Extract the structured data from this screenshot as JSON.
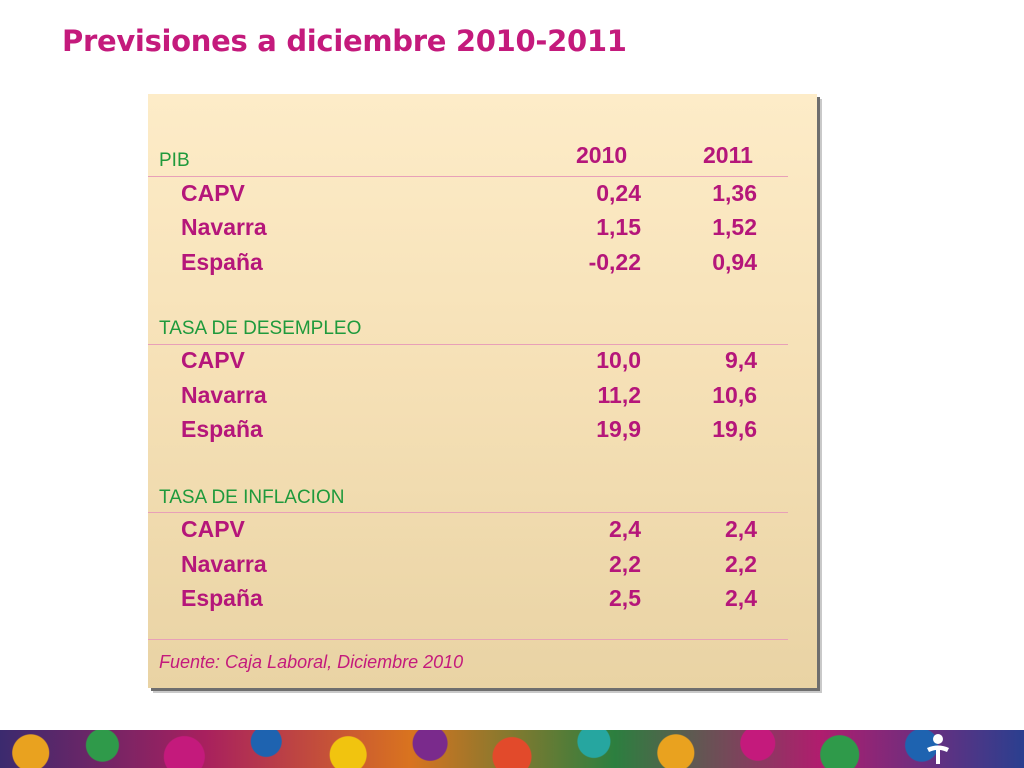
{
  "title": "Previsiones a diciembre 2010-2011",
  "table": {
    "years": [
      "2010",
      "2011"
    ],
    "sections": [
      {
        "heading": "PIB",
        "rows": [
          {
            "label": "CAPV",
            "v2010": "0,24",
            "v2011": "1,36"
          },
          {
            "label": "Navarra",
            "v2010": "1,15",
            "v2011": "1,52"
          },
          {
            "label": "España",
            "v2010": "-0,22",
            "v2011": "0,94"
          }
        ]
      },
      {
        "heading": "TASA DE DESEMPLEO",
        "rows": [
          {
            "label": "CAPV",
            "v2010": "10,0",
            "v2011": "9,4"
          },
          {
            "label": "Navarra",
            "v2010": "11,2",
            "v2011": "10,6"
          },
          {
            "label": "España",
            "v2010": "19,9",
            "v2011": "19,6"
          }
        ]
      },
      {
        "heading": "TASA DE INFLACION",
        "rows": [
          {
            "label": "CAPV",
            "v2010": "2,4",
            "v2011": "2,4"
          },
          {
            "label": "Navarra",
            "v2010": "2,2",
            "v2011": "2,2"
          },
          {
            "label": "España",
            "v2010": "2,5",
            "v2011": "2,4"
          }
        ]
      }
    ],
    "source": "Fuente: Caja Laboral, Diciembre 2010"
  },
  "colors": {
    "title": "#c41a7c",
    "section_heading": "#1f9a3c",
    "values": "#b5167a",
    "card": "#fdecc8"
  },
  "icons": {
    "footer_logo": "person-logo-icon"
  }
}
